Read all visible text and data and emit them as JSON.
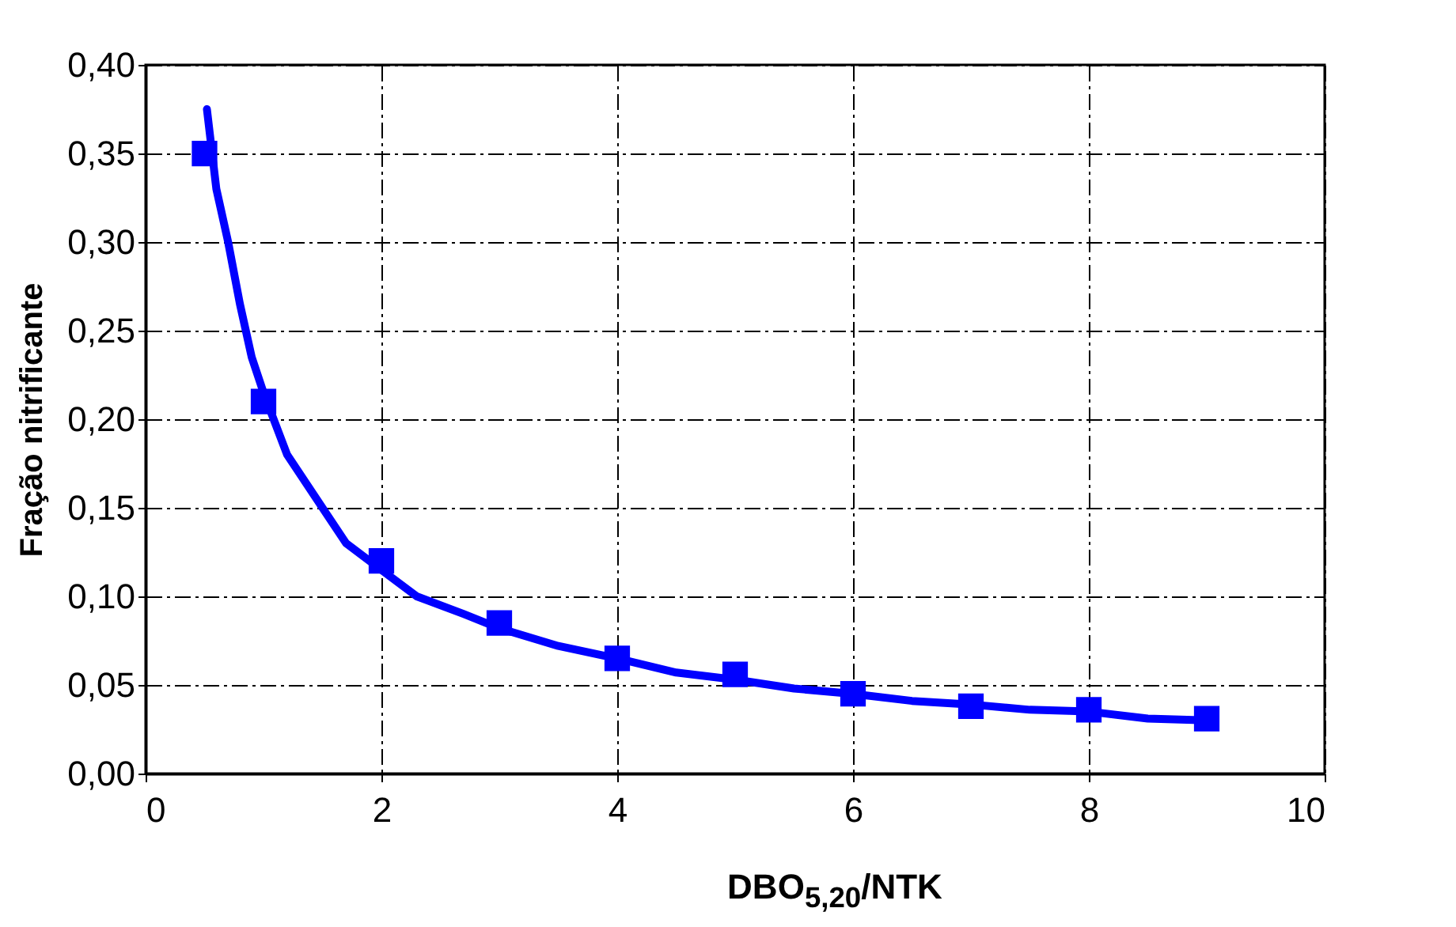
{
  "chart_data": {
    "type": "scatter",
    "xlabel": "DBO$_{5,20}$/NTK",
    "ylabel": "Fração nitrificante",
    "xlim": [
      0,
      10
    ],
    "xticks": [
      0,
      2,
      4,
      6,
      8,
      10
    ],
    "ylim": [
      0,
      0.4
    ],
    "yticks": [
      {
        "value": 0,
        "label": "0,00"
      },
      {
        "value": 0.05,
        "label": "0,05"
      },
      {
        "value": 0.1,
        "label": "0,10"
      },
      {
        "value": 0.15,
        "label": "0,15"
      },
      {
        "value": 0.2,
        "label": "0,20"
      },
      {
        "value": 0.25,
        "label": "0,25"
      },
      {
        "value": 0.3,
        "label": "0,30"
      },
      {
        "value": 0.35,
        "label": "0,35"
      },
      {
        "value": 0.4,
        "label": "0,40"
      }
    ],
    "grid": true,
    "series": [
      {
        "type": "line",
        "color": "#0000ff",
        "marker": "none",
        "line_style": "solid",
        "x": [
          0.52,
          0.6,
          0.7,
          0.8,
          0.9,
          1.0,
          1.2,
          1.5,
          1.7,
          2.0,
          2.3,
          2.7,
          3.0,
          3.5,
          4.0,
          4.5,
          5.0,
          5.5,
          6.0,
          6.5,
          7.0,
          7.5,
          8.0,
          8.5,
          9.0
        ],
        "values": [
          0.375,
          0.33,
          0.3,
          0.265,
          0.235,
          0.215,
          0.18,
          0.15,
          0.13,
          0.115,
          0.1,
          0.09,
          0.082,
          0.072,
          0.065,
          0.057,
          0.053,
          0.048,
          0.045,
          0.041,
          0.039,
          0.036,
          0.035,
          0.031,
          0.03
        ]
      },
      {
        "color": "#0000ff",
        "marker": "square",
        "x": [
          0.5,
          1,
          2,
          3,
          4,
          5,
          6,
          7,
          8,
          9
        ],
        "values": [
          0.35,
          0.21,
          0.12,
          0.085,
          0.065,
          0.056,
          0.045,
          0.038,
          0.036,
          0.031
        ]
      }
    ]
  }
}
